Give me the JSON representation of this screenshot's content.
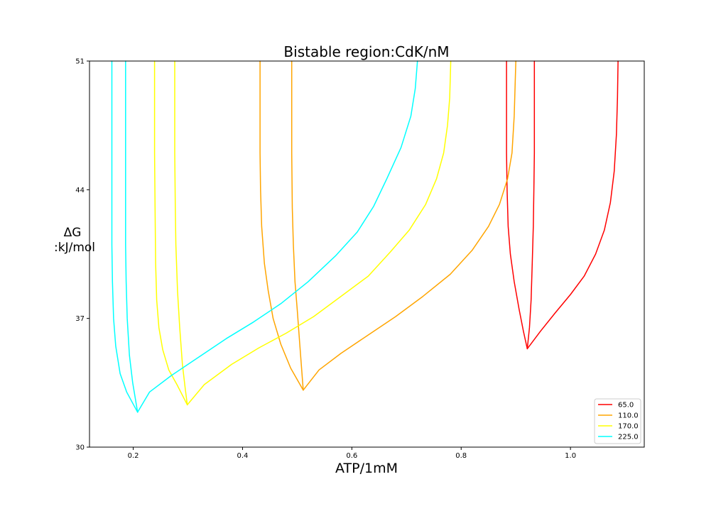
{
  "chart_data": {
    "type": "line",
    "title": "Bistable region:CdK/nM",
    "xlabel": "ATP/1mM",
    "ylabel_line1": "ΔG",
    "ylabel_line2": ":kJ/mol",
    "xlim": [
      0.12,
      1.135
    ],
    "ylim": [
      30,
      51
    ],
    "xticks": [
      0.2,
      0.4,
      0.6,
      0.8,
      1.0
    ],
    "xtick_labels": [
      "0.2",
      "0.4",
      "0.6",
      "0.8",
      "1.0"
    ],
    "yticks": [
      30,
      37,
      44,
      51
    ],
    "ytick_labels": [
      "30",
      "37",
      "44",
      "51"
    ],
    "grid": false,
    "legend_position": "lower-right",
    "series": [
      {
        "name": "65.0",
        "color": "#ff0000",
        "branches": [
          [
            [
              0.883,
              51
            ],
            [
              0.883,
              46
            ],
            [
              0.884,
              44
            ],
            [
              0.886,
              42
            ],
            [
              0.89,
              40.5
            ],
            [
              0.897,
              39
            ],
            [
              0.906,
              37.5
            ],
            [
              0.914,
              36.3
            ],
            [
              0.921,
              35.35
            ]
          ],
          [
            [
              0.934,
              51
            ],
            [
              0.934,
              46
            ],
            [
              0.933,
              44
            ],
            [
              0.932,
              42
            ],
            [
              0.93,
              40
            ],
            [
              0.928,
              38
            ],
            [
              0.925,
              36.5
            ],
            [
              0.921,
              35.35
            ]
          ],
          [
            [
              0.921,
              35.35
            ],
            [
              0.945,
              36.3
            ],
            [
              0.972,
              37.3
            ],
            [
              1.0,
              38.3
            ],
            [
              1.025,
              39.3
            ],
            [
              1.046,
              40.5
            ],
            [
              1.062,
              41.8
            ],
            [
              1.073,
              43.3
            ],
            [
              1.08,
              45
            ],
            [
              1.084,
              47
            ],
            [
              1.086,
              49
            ],
            [
              1.087,
              51
            ]
          ]
        ]
      },
      {
        "name": "110.0",
        "color": "#ffa500",
        "branches": [
          [
            [
              0.432,
              51
            ],
            [
              0.432,
              46
            ],
            [
              0.433,
              44
            ],
            [
              0.435,
              42
            ],
            [
              0.44,
              40
            ],
            [
              0.447,
              38.5
            ],
            [
              0.456,
              37
            ],
            [
              0.47,
              35.6
            ],
            [
              0.488,
              34.3
            ],
            [
              0.511,
              33.1
            ]
          ],
          [
            [
              0.49,
              51
            ],
            [
              0.49,
              46
            ],
            [
              0.491,
              43
            ],
            [
              0.493,
              41
            ],
            [
              0.496,
              39
            ],
            [
              0.5,
              37.5
            ],
            [
              0.505,
              35.5
            ],
            [
              0.511,
              33.1
            ]
          ],
          [
            [
              0.511,
              33.1
            ],
            [
              0.54,
              34.2
            ],
            [
              0.58,
              35.1
            ],
            [
              0.63,
              36.1
            ],
            [
              0.68,
              37.1
            ],
            [
              0.73,
              38.2
            ],
            [
              0.78,
              39.4
            ],
            [
              0.82,
              40.7
            ],
            [
              0.85,
              42
            ],
            [
              0.87,
              43.2
            ],
            [
              0.885,
              44.6
            ],
            [
              0.893,
              46
            ],
            [
              0.897,
              48
            ],
            [
              0.9,
              51
            ]
          ]
        ]
      },
      {
        "name": "170.0",
        "color": "#ffff00",
        "branches": [
          [
            [
              0.239,
              51
            ],
            [
              0.239,
              46
            ],
            [
              0.24,
              43
            ],
            [
              0.241,
              40
            ],
            [
              0.243,
              38
            ],
            [
              0.247,
              36.5
            ],
            [
              0.254,
              35.3
            ],
            [
              0.265,
              34.2
            ],
            [
              0.28,
              33.4
            ],
            [
              0.299,
              32.3
            ]
          ],
          [
            [
              0.276,
              51
            ],
            [
              0.276,
              46
            ],
            [
              0.277,
              43
            ],
            [
              0.278,
              41
            ],
            [
              0.281,
              38.5
            ],
            [
              0.285,
              36.5
            ],
            [
              0.29,
              34.5
            ],
            [
              0.295,
              33.2
            ],
            [
              0.299,
              32.3
            ]
          ],
          [
            [
              0.299,
              32.3
            ],
            [
              0.33,
              33.4
            ],
            [
              0.38,
              34.5
            ],
            [
              0.43,
              35.4
            ],
            [
              0.48,
              36.2
            ],
            [
              0.53,
              37.1
            ],
            [
              0.58,
              38.2
            ],
            [
              0.63,
              39.3
            ],
            [
              0.67,
              40.6
            ],
            [
              0.705,
              41.8
            ],
            [
              0.735,
              43.2
            ],
            [
              0.755,
              44.6
            ],
            [
              0.768,
              46
            ],
            [
              0.775,
              47.5
            ],
            [
              0.779,
              49
            ],
            [
              0.781,
              51
            ]
          ]
        ]
      },
      {
        "name": "225.0",
        "color": "#00ffff",
        "branches": [
          [
            [
              0.161,
              51
            ],
            [
              0.161,
              46
            ],
            [
              0.161,
              43
            ],
            [
              0.161,
              41
            ],
            [
              0.162,
              39
            ],
            [
              0.164,
              37
            ],
            [
              0.168,
              35.5
            ],
            [
              0.176,
              34
            ],
            [
              0.188,
              33
            ],
            [
              0.208,
              31.9
            ]
          ],
          [
            [
              0.186,
              51
            ],
            [
              0.186,
              46
            ],
            [
              0.186,
              43
            ],
            [
              0.186,
              41
            ],
            [
              0.187,
              39
            ],
            [
              0.189,
              37
            ],
            [
              0.193,
              35
            ],
            [
              0.199,
              33.5
            ],
            [
              0.208,
              31.9
            ]
          ],
          [
            [
              0.208,
              31.9
            ],
            [
              0.23,
              33
            ],
            [
              0.27,
              33.9
            ],
            [
              0.32,
              34.9
            ],
            [
              0.37,
              35.9
            ],
            [
              0.42,
              36.8
            ],
            [
              0.47,
              37.8
            ],
            [
              0.52,
              39
            ],
            [
              0.57,
              40.4
            ],
            [
              0.61,
              41.7
            ],
            [
              0.64,
              43.1
            ],
            [
              0.664,
              44.6
            ],
            [
              0.69,
              46.3
            ],
            [
              0.708,
              48
            ],
            [
              0.716,
              49.5
            ],
            [
              0.72,
              51
            ]
          ]
        ]
      }
    ]
  }
}
